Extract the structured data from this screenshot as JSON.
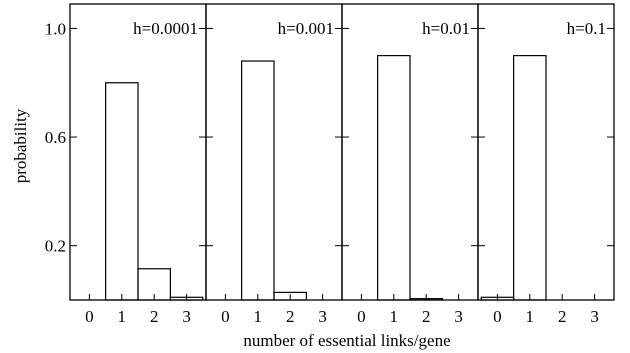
{
  "chart_data": {
    "type": "bar",
    "ylabel": "probability",
    "xlabel": "number of essential links/gene",
    "ylim": [
      0,
      1.09
    ],
    "y_ticks": [
      {
        "value": 0.2,
        "label": "0.2"
      },
      {
        "value": 0.6,
        "label": "0.6"
      },
      {
        "value": 1.0,
        "label": "1.0"
      }
    ],
    "x_tick_labels": [
      "0",
      "1",
      "2",
      "3"
    ],
    "xlim": [
      -0.6,
      3.6
    ],
    "panels": [
      {
        "label": "h=0.0001",
        "categories": [
          0,
          1,
          2,
          3
        ],
        "values": [
          0.0,
          0.8,
          0.115,
          0.01
        ]
      },
      {
        "label": "h=0.001",
        "categories": [
          0,
          1,
          2,
          3
        ],
        "values": [
          0.0,
          0.88,
          0.028,
          0.0
        ]
      },
      {
        "label": "h=0.01",
        "categories": [
          0,
          1,
          2,
          3
        ],
        "values": [
          0.0,
          0.9,
          0.005,
          0.0
        ]
      },
      {
        "label": "h=0.1",
        "categories": [
          0,
          1,
          2,
          3
        ],
        "values": [
          0.01,
          0.9,
          0.0,
          0.0
        ]
      }
    ]
  }
}
